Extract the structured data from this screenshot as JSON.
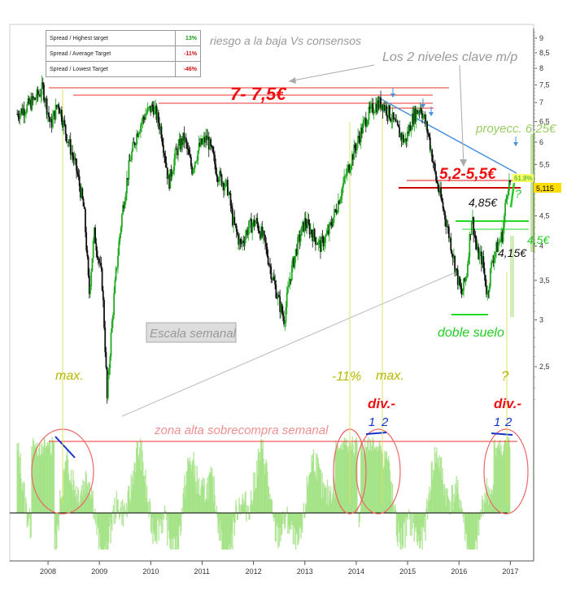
{
  "spread_table": {
    "rows": [
      {
        "label": "Spread / Highest target",
        "value": "13%",
        "color": "#1a9d1a"
      },
      {
        "label": "Spread / Average Target",
        "value": "-11%",
        "color": "#cc1111"
      },
      {
        "label": "Spread / Lowest Target",
        "value": "-46%",
        "color": "#cc1111"
      }
    ]
  },
  "annotations": {
    "riesgo": "riesgo a la baja Vs consensos",
    "niveles": "Los 2 niveles clave m/p",
    "resistencia": "7- 7,5€",
    "zona_clave": "5,2-5,5€",
    "proyeccion": "proyecc. 6,25€",
    "nivel_485": "4,85€",
    "nivel_45": "4,5€",
    "nivel_415": "4,15€",
    "doble_suelo": "doble suelo",
    "escala": "Escala semanal",
    "max1": "max.",
    "menos11": "-11%",
    "max2": "max.",
    "interrogacion1": "?",
    "interrogacion2": "?",
    "div1": "div.-",
    "div2": "div.-",
    "num1a": "1",
    "num1b": "2",
    "num2a": "1",
    "num2b": "2",
    "zona_alta": "zona alta sobrecompra semanal",
    "last_price": "5,115",
    "green_label": "61,8%"
  },
  "chart_data": {
    "type": "candlestick",
    "scale": "log",
    "ylim": [
      2.1,
      9.2
    ],
    "yticks": [
      "2,5",
      "3",
      "3,5",
      "4",
      "4,5",
      "5",
      "5,5",
      "6",
      "6,5",
      "7",
      "7,5",
      "8",
      "8,5",
      "9"
    ],
    "xticks": [
      "2008",
      "2009",
      "2010",
      "2011",
      "2012",
      "2013",
      "2014",
      "2015",
      "2016",
      "2017"
    ],
    "price_path": [
      [
        2007.4,
        6.7
      ],
      [
        2007.6,
        6.9
      ],
      [
        2007.75,
        7.1
      ],
      [
        2007.9,
        7.4
      ],
      [
        2008.05,
        6.4
      ],
      [
        2008.2,
        7.0
      ],
      [
        2008.35,
        6.2
      ],
      [
        2008.55,
        5.4
      ],
      [
        2008.7,
        4.6
      ],
      [
        2008.8,
        3.3
      ],
      [
        2008.9,
        4.2
      ],
      [
        2009.05,
        3.5
      ],
      [
        2009.15,
        2.2
      ],
      [
        2009.3,
        3.4
      ],
      [
        2009.45,
        4.6
      ],
      [
        2009.6,
        5.6
      ],
      [
        2009.75,
        6.3
      ],
      [
        2009.9,
        6.7
      ],
      [
        2010.05,
        6.9
      ],
      [
        2010.2,
        6.3
      ],
      [
        2010.35,
        5.1
      ],
      [
        2010.5,
        5.8
      ],
      [
        2010.65,
        6.1
      ],
      [
        2010.8,
        5.4
      ],
      [
        2010.95,
        5.9
      ],
      [
        2011.1,
        6.1
      ],
      [
        2011.3,
        5.3
      ],
      [
        2011.5,
        5.0
      ],
      [
        2011.6,
        4.4
      ],
      [
        2011.75,
        4.0
      ],
      [
        2011.9,
        4.3
      ],
      [
        2012.05,
        4.4
      ],
      [
        2012.2,
        4.1
      ],
      [
        2012.35,
        3.6
      ],
      [
        2012.5,
        3.2
      ],
      [
        2012.6,
        3.0
      ],
      [
        2012.7,
        3.5
      ],
      [
        2012.85,
        4.0
      ],
      [
        2013.0,
        4.4
      ],
      [
        2013.15,
        4.2
      ],
      [
        2013.3,
        4.0
      ],
      [
        2013.45,
        4.2
      ],
      [
        2013.6,
        4.6
      ],
      [
        2013.75,
        5.1
      ],
      [
        2013.9,
        5.6
      ],
      [
        2014.05,
        6.1
      ],
      [
        2014.2,
        6.6
      ],
      [
        2014.35,
        6.9
      ],
      [
        2014.5,
        7.0
      ],
      [
        2014.65,
        6.7
      ],
      [
        2014.8,
        6.3
      ],
      [
        2014.95,
        6.0
      ],
      [
        2015.1,
        6.6
      ],
      [
        2015.25,
        6.9
      ],
      [
        2015.4,
        6.2
      ],
      [
        2015.55,
        5.2
      ],
      [
        2015.7,
        4.6
      ],
      [
        2015.8,
        4.2
      ],
      [
        2015.95,
        3.6
      ],
      [
        2016.05,
        3.3
      ],
      [
        2016.15,
        3.6
      ],
      [
        2016.25,
        4.5
      ],
      [
        2016.35,
        3.9
      ],
      [
        2016.45,
        3.8
      ],
      [
        2016.55,
        3.3
      ],
      [
        2016.65,
        3.8
      ],
      [
        2016.75,
        4.0
      ],
      [
        2016.85,
        4.2
      ],
      [
        2016.95,
        5.1
      ],
      [
        2017.0,
        5.115
      ]
    ],
    "oscillator": {
      "zones_circled": [
        2007.9,
        2013.8,
        2014.3,
        2016.9
      ]
    }
  }
}
